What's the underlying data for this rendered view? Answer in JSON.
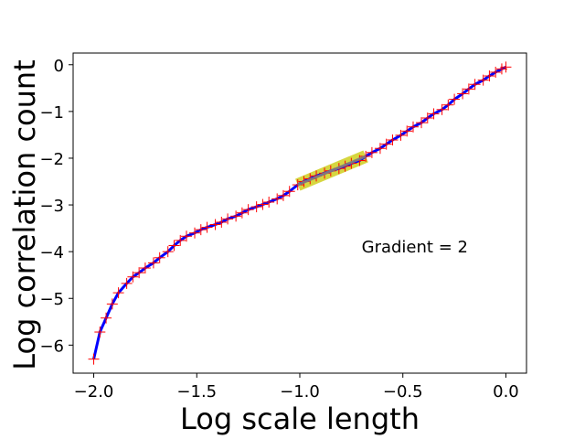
{
  "chart_data": {
    "type": "line",
    "title": "",
    "xlabel": "Log scale length",
    "ylabel": "Log correlation count",
    "xlim": [
      -2.1,
      0.1
    ],
    "ylim": [
      -6.6,
      0.25
    ],
    "x_ticks": [
      -2.0,
      -1.5,
      -1.0,
      -0.5,
      0.0
    ],
    "x_tick_labels": [
      "−2.0",
      "−1.5",
      "−1.0",
      "−0.5",
      "0.0"
    ],
    "y_ticks": [
      0,
      -1,
      -2,
      -3,
      -4,
      -5,
      -6
    ],
    "y_tick_labels": [
      "0",
      "−1",
      "−2",
      "−3",
      "−4",
      "−5",
      "−6"
    ],
    "grid": false,
    "series": [
      {
        "style": "line-with-markers",
        "color": "#0000ff",
        "marker": "plus",
        "marker_color": "#ff0000",
        "points": [
          [
            -2.0,
            -6.3
          ],
          [
            -1.97,
            -5.72
          ],
          [
            -1.94,
            -5.42
          ],
          [
            -1.91,
            -5.12
          ],
          [
            -1.88,
            -4.88
          ],
          [
            -1.84,
            -4.68
          ],
          [
            -1.81,
            -4.54
          ],
          [
            -1.78,
            -4.45
          ],
          [
            -1.75,
            -4.35
          ],
          [
            -1.71,
            -4.24
          ],
          [
            -1.68,
            -4.13
          ],
          [
            -1.64,
            -4.0
          ],
          [
            -1.61,
            -3.87
          ],
          [
            -1.58,
            -3.76
          ],
          [
            -1.55,
            -3.67
          ],
          [
            -1.51,
            -3.6
          ],
          [
            -1.48,
            -3.53
          ],
          [
            -1.45,
            -3.48
          ],
          [
            -1.41,
            -3.42
          ],
          [
            -1.38,
            -3.37
          ],
          [
            -1.35,
            -3.3
          ],
          [
            -1.31,
            -3.24
          ],
          [
            -1.28,
            -3.17
          ],
          [
            -1.25,
            -3.1
          ],
          [
            -1.21,
            -3.04
          ],
          [
            -1.18,
            -2.99
          ],
          [
            -1.15,
            -2.94
          ],
          [
            -1.11,
            -2.87
          ],
          [
            -1.08,
            -2.8
          ],
          [
            -1.05,
            -2.71
          ],
          [
            -1.01,
            -2.57
          ],
          [
            -0.98,
            -2.5
          ],
          [
            -0.95,
            -2.44
          ],
          [
            -0.92,
            -2.38
          ],
          [
            -0.88,
            -2.32
          ],
          [
            -0.85,
            -2.27
          ],
          [
            -0.81,
            -2.22
          ],
          [
            -0.78,
            -2.17
          ],
          [
            -0.75,
            -2.11
          ],
          [
            -0.71,
            -2.05
          ],
          [
            -0.68,
            -1.96
          ],
          [
            -0.65,
            -1.88
          ],
          [
            -0.61,
            -1.79
          ],
          [
            -0.58,
            -1.7
          ],
          [
            -0.55,
            -1.61
          ],
          [
            -0.51,
            -1.51
          ],
          [
            -0.48,
            -1.42
          ],
          [
            -0.45,
            -1.33
          ],
          [
            -0.41,
            -1.24
          ],
          [
            -0.38,
            -1.14
          ],
          [
            -0.35,
            -1.05
          ],
          [
            -0.31,
            -0.96
          ],
          [
            -0.28,
            -0.86
          ],
          [
            -0.25,
            -0.74
          ],
          [
            -0.21,
            -0.62
          ],
          [
            -0.18,
            -0.52
          ],
          [
            -0.15,
            -0.42
          ],
          [
            -0.11,
            -0.33
          ],
          [
            -0.08,
            -0.24
          ],
          [
            -0.05,
            -0.16
          ],
          [
            -0.02,
            -0.09
          ],
          [
            0.0,
            -0.05
          ]
        ]
      }
    ],
    "fit_segment": {
      "style": "thick-highlight",
      "color": "#c8c800",
      "inner_color": "#808080",
      "points": [
        [
          -1.01,
          -2.57
        ],
        [
          -0.68,
          -1.96
        ]
      ]
    },
    "annotations": [
      {
        "text": "Gradient = 2",
        "x": -0.7,
        "y": -3.9
      }
    ]
  }
}
